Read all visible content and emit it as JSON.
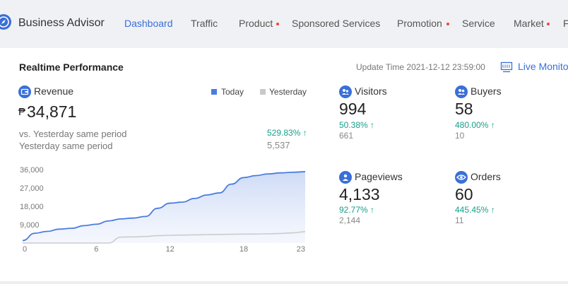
{
  "app": {
    "brand": "Business Advisor"
  },
  "nav": {
    "items": [
      {
        "label": "Dashboard",
        "active": true,
        "dot": false
      },
      {
        "label": "Traffic",
        "active": false,
        "dot": false
      },
      {
        "label": "Product",
        "active": false,
        "dot": true
      },
      {
        "label": "Sponsored Services",
        "active": false,
        "dot": false
      },
      {
        "label": "Promotion",
        "active": false,
        "dot": true
      },
      {
        "label": "Service",
        "active": false,
        "dot": false
      },
      {
        "label": "Market",
        "active": false,
        "dot": true
      },
      {
        "label": "F",
        "active": false,
        "dot": false
      }
    ]
  },
  "realtime": {
    "title": "Realtime Performance",
    "update_label": "Update Time",
    "update_time": "2021-12-12 23:59:00",
    "live_monitor": "Live Monitor"
  },
  "revenue": {
    "label": "Revenue",
    "currency": "₱",
    "value": "34,871",
    "vs_label": "vs. Yesterday same period",
    "vs_pct": "529.83%",
    "vs_arrow": "↑",
    "yesterday_label": "Yesterday same period",
    "yesterday_value": "5,537"
  },
  "legend": {
    "today": "Today",
    "yesterday": "Yesterday"
  },
  "metrics": {
    "visitors": {
      "label": "Visitors",
      "value": "994",
      "pct": "50.38%",
      "arrow": "↑",
      "prev": "661"
    },
    "buyers": {
      "label": "Buyers",
      "value": "58",
      "pct": "480.00%",
      "arrow": "↑",
      "prev": "10"
    },
    "pageviews": {
      "label": "Pageviews",
      "value": "4,133",
      "pct": "92.77%",
      "arrow": "↑",
      "prev": "2,144"
    },
    "orders": {
      "label": "Orders",
      "value": "60",
      "pct": "445.45%",
      "arrow": "↑",
      "prev": "11"
    }
  },
  "colors": {
    "accent": "#3a6fd8",
    "positive": "#18a08a",
    "today_line": "#4a7ce0",
    "yesterday_line": "#cccccc",
    "alert_dot": "#f0463c"
  },
  "icons": {
    "logo": "compass-logo-icon",
    "monitor": "monitor-icon",
    "revenue": "wallet-icon",
    "visitors": "visitors-icon",
    "buyers": "buyers-icon",
    "pageviews": "pageviews-icon",
    "orders": "eye-icon"
  },
  "chart_data": {
    "type": "area",
    "x": [
      0,
      1,
      2,
      3,
      4,
      5,
      6,
      7,
      8,
      9,
      10,
      11,
      12,
      13,
      14,
      15,
      16,
      17,
      18,
      19,
      20,
      21,
      22,
      23
    ],
    "xticks": [
      "0",
      "6",
      "12",
      "18",
      "23"
    ],
    "yticks": [
      "9,000",
      "18,000",
      "27,000",
      "36,000"
    ],
    "ylim": [
      0,
      38000
    ],
    "series": [
      {
        "name": "Today",
        "values": [
          1200,
          4800,
          5700,
          6800,
          7200,
          8500,
          9200,
          10800,
          11800,
          12200,
          13000,
          17000,
          19500,
          20000,
          21800,
          23500,
          24500,
          28800,
          32000,
          33000,
          33800,
          34300,
          34600,
          34871
        ]
      },
      {
        "name": "Yesterday",
        "values": [
          0,
          0,
          0,
          0,
          0,
          0,
          0,
          0,
          2900,
          3000,
          3200,
          3600,
          3800,
          3900,
          4000,
          4100,
          4200,
          4300,
          4400,
          4400,
          4500,
          4700,
          5000,
          5537
        ]
      }
    ]
  }
}
